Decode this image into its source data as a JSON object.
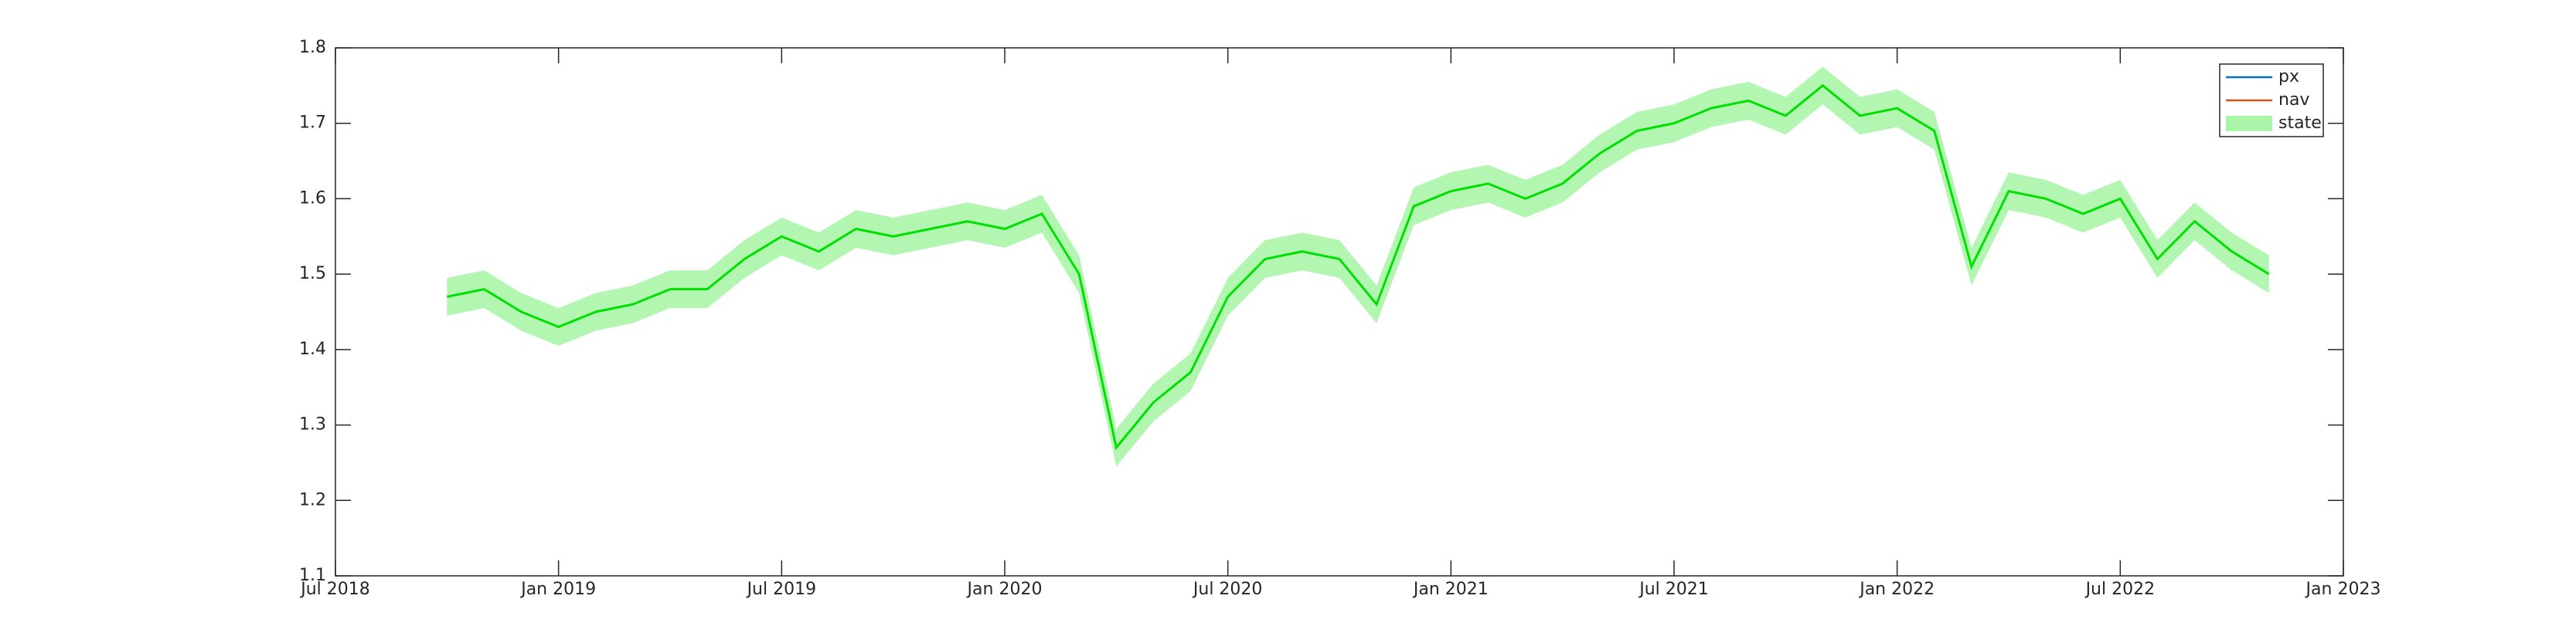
{
  "chart_data": {
    "type": "line",
    "xlim": [
      "2018-07",
      "2023-01"
    ],
    "xticks": [
      {
        "value": "2018-07",
        "label": "Jul 2018"
      },
      {
        "value": "2019-01",
        "label": "Jan 2019"
      },
      {
        "value": "2019-07",
        "label": "Jul 2019"
      },
      {
        "value": "2020-01",
        "label": "Jan 2020"
      },
      {
        "value": "2020-07",
        "label": "Jul 2020"
      },
      {
        "value": "2021-01",
        "label": "Jan 2021"
      },
      {
        "value": "2021-07",
        "label": "Jul 2021"
      },
      {
        "value": "2022-01",
        "label": "Jan 2022"
      },
      {
        "value": "2022-07",
        "label": "Jul 2022"
      },
      {
        "value": "2023-01",
        "label": "Jan 2023"
      }
    ],
    "ylim": [
      1.1,
      1.8
    ],
    "yticks": [
      1.1,
      1.2,
      1.3,
      1.4,
      1.5,
      1.6,
      1.7,
      1.8
    ],
    "legend_location": "northeast",
    "legend": [
      {
        "name": "px",
        "color": "#0072bd",
        "kind": "line"
      },
      {
        "name": "nav",
        "color": "#d95319",
        "kind": "line"
      },
      {
        "name": "state",
        "color": "#aaf5aa",
        "kind": "patch"
      }
    ],
    "x": [
      "2018-10",
      "2018-11",
      "2018-12",
      "2019-01",
      "2019-02",
      "2019-03",
      "2019-04",
      "2019-05",
      "2019-06",
      "2019-07",
      "2019-08",
      "2019-09",
      "2019-10",
      "2019-11",
      "2019-12",
      "2020-01",
      "2020-02",
      "2020-03",
      "2020-04",
      "2020-05",
      "2020-06",
      "2020-07",
      "2020-08",
      "2020-09",
      "2020-10",
      "2020-11",
      "2020-12",
      "2021-01",
      "2021-02",
      "2021-03",
      "2021-04",
      "2021-05",
      "2021-06",
      "2021-07",
      "2021-08",
      "2021-09",
      "2021-10",
      "2021-11",
      "2021-12",
      "2022-01",
      "2022-02",
      "2022-03",
      "2022-04",
      "2022-05",
      "2022-06",
      "2022-07",
      "2022-08",
      "2022-09",
      "2022-10",
      "2022-11"
    ],
    "series": [
      {
        "color": "#00e000",
        "band_color": "#aaf5aa",
        "values": [
          1.47,
          1.48,
          1.45,
          1.43,
          1.45,
          1.46,
          1.48,
          1.48,
          1.52,
          1.55,
          1.53,
          1.56,
          1.55,
          1.56,
          1.57,
          1.56,
          1.58,
          1.5,
          1.27,
          1.33,
          1.37,
          1.47,
          1.52,
          1.53,
          1.52,
          1.46,
          1.59,
          1.61,
          1.62,
          1.6,
          1.62,
          1.66,
          1.69,
          1.7,
          1.72,
          1.73,
          1.71,
          1.75,
          1.71,
          1.72,
          1.69,
          1.51,
          1.61,
          1.6,
          1.58,
          1.6,
          1.52,
          1.57,
          1.53,
          1.5
        ],
        "lower": [
          1.445,
          1.455,
          1.425,
          1.405,
          1.425,
          1.435,
          1.455,
          1.455,
          1.495,
          1.525,
          1.505,
          1.535,
          1.525,
          1.535,
          1.545,
          1.535,
          1.555,
          1.475,
          1.245,
          1.305,
          1.345,
          1.445,
          1.495,
          1.505,
          1.495,
          1.435,
          1.565,
          1.585,
          1.595,
          1.575,
          1.595,
          1.635,
          1.665,
          1.675,
          1.695,
          1.705,
          1.685,
          1.725,
          1.685,
          1.695,
          1.665,
          1.485,
          1.585,
          1.575,
          1.555,
          1.575,
          1.495,
          1.545,
          1.505,
          1.475
        ],
        "upper": [
          1.495,
          1.505,
          1.475,
          1.455,
          1.475,
          1.485,
          1.505,
          1.505,
          1.545,
          1.575,
          1.555,
          1.585,
          1.575,
          1.585,
          1.595,
          1.585,
          1.605,
          1.525,
          1.295,
          1.355,
          1.395,
          1.495,
          1.545,
          1.555,
          1.545,
          1.485,
          1.615,
          1.635,
          1.645,
          1.625,
          1.645,
          1.685,
          1.715,
          1.725,
          1.745,
          1.755,
          1.735,
          1.775,
          1.735,
          1.745,
          1.715,
          1.535,
          1.635,
          1.625,
          1.605,
          1.625,
          1.545,
          1.595,
          1.555,
          1.525
        ]
      }
    ]
  }
}
